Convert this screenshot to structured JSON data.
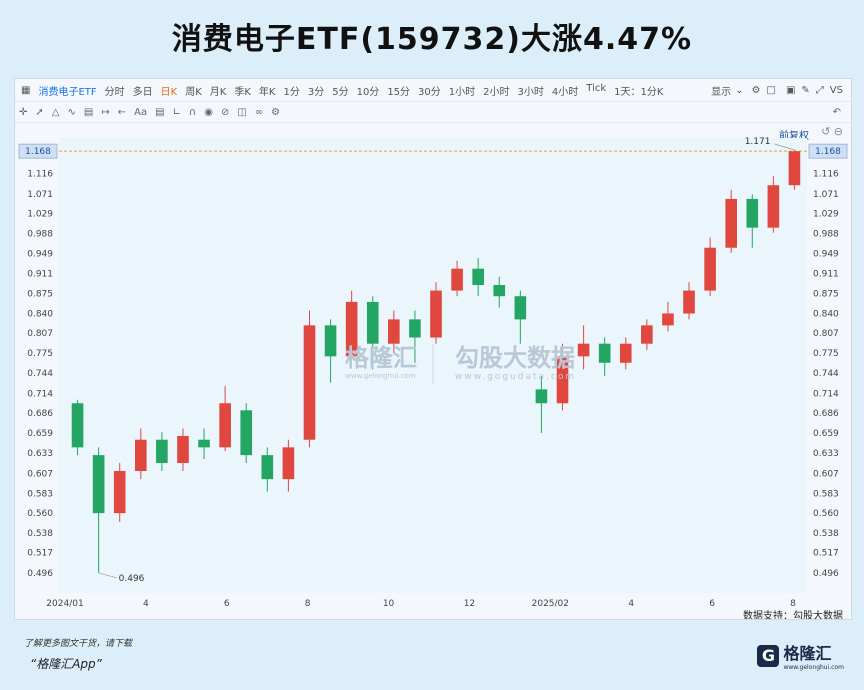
{
  "headline": "消费电子ETF(159732)大涨4.47%",
  "toolbar": {
    "instrument": "消费电子ETF",
    "periods": [
      "分时",
      "多日",
      "日K",
      "周K",
      "月K",
      "季K",
      "年K",
      "1分",
      "3分",
      "5分",
      "10分",
      "15分",
      "30分",
      "1小时",
      "2小时",
      "3小时",
      "4小时",
      "Tick",
      "1天：1分K"
    ],
    "active_period": "日K",
    "display_label": "显示",
    "vs_label": "VS",
    "adjust_label": "前复权"
  },
  "watermark": {
    "left_cn": "格隆汇",
    "left_url": "www.gelonghui.com",
    "right_cn": "勾股大数据",
    "right_url": "www.gogudata.com"
  },
  "source_note": "数据支持：勾股大数据",
  "footer": {
    "note": "了解更多图文干货，请下载",
    "app": "“格隆汇App”",
    "logo_text": "格隆汇",
    "logo_sub": "www.gelonghui.com"
  },
  "colors": {
    "up": "#e0473f",
    "down": "#23a563",
    "ref_line": "#e8a23b"
  },
  "chart_data": {
    "type": "candlestick",
    "title": "",
    "y_ticks": [
      1.168,
      1.116,
      1.071,
      1.029,
      0.988,
      0.949,
      0.911,
      0.875,
      0.84,
      0.807,
      0.775,
      0.744,
      0.714,
      0.686,
      0.659,
      0.633,
      0.607,
      0.583,
      0.56,
      0.538,
      0.517,
      0.496
    ],
    "x_ticks": [
      "2024/01",
      "4",
      "6",
      "8",
      "10",
      "12",
      "2025/02",
      "4",
      "6",
      "8"
    ],
    "ylim": [
      0.48,
      1.19
    ],
    "log_scale": true,
    "current_price": 1.168,
    "annotations": [
      {
        "label": "1.171",
        "value": 1.171
      },
      {
        "label": "0.496",
        "value": 0.496
      }
    ],
    "series": [
      {
        "period": "2024/01",
        "open": 0.7,
        "close": 0.64,
        "high": 0.705,
        "low": 0.63
      },
      {
        "period": "2024/02a",
        "open": 0.63,
        "close": 0.56,
        "high": 0.64,
        "low": 0.496
      },
      {
        "period": "2024/02b",
        "open": 0.56,
        "close": 0.61,
        "high": 0.62,
        "low": 0.55
      },
      {
        "period": "2024/03",
        "open": 0.61,
        "close": 0.65,
        "high": 0.665,
        "low": 0.6
      },
      {
        "period": "2024/04",
        "open": 0.65,
        "close": 0.62,
        "high": 0.66,
        "low": 0.61
      },
      {
        "period": "2024/05",
        "open": 0.62,
        "close": 0.655,
        "high": 0.665,
        "low": 0.61
      },
      {
        "period": "2024/06",
        "open": 0.65,
        "close": 0.64,
        "high": 0.665,
        "low": 0.625
      },
      {
        "period": "2024/07",
        "open": 0.64,
        "close": 0.7,
        "high": 0.725,
        "low": 0.635
      },
      {
        "period": "2024/08a",
        "open": 0.69,
        "close": 0.63,
        "high": 0.7,
        "low": 0.62
      },
      {
        "period": "2024/08b",
        "open": 0.63,
        "close": 0.6,
        "high": 0.64,
        "low": 0.585
      },
      {
        "period": "2024/09",
        "open": 0.6,
        "close": 0.64,
        "high": 0.65,
        "low": 0.585
      },
      {
        "period": "2024/10a",
        "open": 0.65,
        "close": 0.82,
        "high": 0.845,
        "low": 0.64
      },
      {
        "period": "2024/10b",
        "open": 0.82,
        "close": 0.77,
        "high": 0.83,
        "low": 0.73
      },
      {
        "period": "2024/11a",
        "open": 0.77,
        "close": 0.86,
        "high": 0.88,
        "low": 0.765
      },
      {
        "period": "2024/11b",
        "open": 0.86,
        "close": 0.79,
        "high": 0.87,
        "low": 0.75
      },
      {
        "period": "2024/12a",
        "open": 0.79,
        "close": 0.83,
        "high": 0.845,
        "low": 0.775
      },
      {
        "period": "2024/12b",
        "open": 0.83,
        "close": 0.8,
        "high": 0.845,
        "low": 0.76
      },
      {
        "period": "2025/01a",
        "open": 0.8,
        "close": 0.88,
        "high": 0.895,
        "low": 0.79
      },
      {
        "period": "2025/01b",
        "open": 0.88,
        "close": 0.92,
        "high": 0.935,
        "low": 0.87
      },
      {
        "period": "2025/02a",
        "open": 0.92,
        "close": 0.89,
        "high": 0.94,
        "low": 0.87
      },
      {
        "period": "2025/03a",
        "open": 0.89,
        "close": 0.87,
        "high": 0.905,
        "low": 0.85
      },
      {
        "period": "2025/03b",
        "open": 0.87,
        "close": 0.83,
        "high": 0.88,
        "low": 0.79
      },
      {
        "period": "2025/04a",
        "open": 0.72,
        "close": 0.7,
        "high": 0.74,
        "low": 0.659
      },
      {
        "period": "2025/04b",
        "open": 0.7,
        "close": 0.77,
        "high": 0.79,
        "low": 0.69
      },
      {
        "period": "2025/05a",
        "open": 0.77,
        "close": 0.79,
        "high": 0.82,
        "low": 0.75
      },
      {
        "period": "2025/05b",
        "open": 0.79,
        "close": 0.76,
        "high": 0.8,
        "low": 0.74
      },
      {
        "period": "2025/06a",
        "open": 0.76,
        "close": 0.79,
        "high": 0.8,
        "low": 0.75
      },
      {
        "period": "2025/06b",
        "open": 0.79,
        "close": 0.82,
        "high": 0.83,
        "low": 0.78
      },
      {
        "period": "2025/07a",
        "open": 0.82,
        "close": 0.84,
        "high": 0.86,
        "low": 0.81
      },
      {
        "period": "2025/07b",
        "open": 0.84,
        "close": 0.88,
        "high": 0.895,
        "low": 0.83
      },
      {
        "period": "2025/08a",
        "open": 0.88,
        "close": 0.96,
        "high": 0.98,
        "low": 0.87
      },
      {
        "period": "2025/08b",
        "open": 0.96,
        "close": 1.06,
        "high": 1.08,
        "low": 0.95
      },
      {
        "period": "2025/08c",
        "open": 1.06,
        "close": 1.0,
        "high": 1.07,
        "low": 0.96
      },
      {
        "period": "2025/09a",
        "open": 1.0,
        "close": 1.09,
        "high": 1.11,
        "low": 0.99
      },
      {
        "period": "2025/09b",
        "open": 1.09,
        "close": 1.168,
        "high": 1.171,
        "low": 1.08
      }
    ]
  }
}
